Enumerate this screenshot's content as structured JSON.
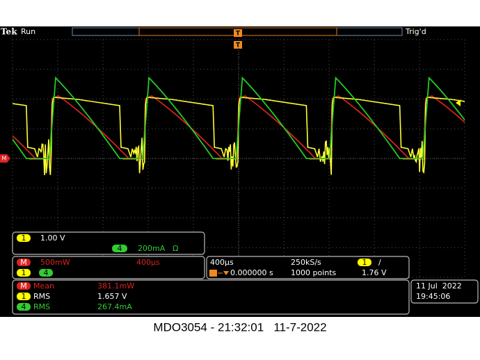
{
  "header": {
    "brand": "Tek",
    "status": "Run",
    "trigger_status": "Trig'd",
    "trigger_marker": "T"
  },
  "markers": {
    "math": "M"
  },
  "channel_panel": {
    "ch1_badge": "1",
    "ch1_scale": "1.00 V",
    "ch4_badge": "4",
    "ch4_scale": "200mA",
    "ch4_unit": "Ω"
  },
  "math_panel": {
    "badge": "M",
    "scale": "500mW",
    "time": "400µs",
    "src1": "1",
    "src2": "4"
  },
  "horizontal_panel": {
    "timebase": "400µs",
    "sample_rate": "250kS/s",
    "trigger_source": "1",
    "trigger_slope": "∕",
    "position": "0.000000 s",
    "record": "1000 points",
    "trigger_level": "1.76 V"
  },
  "measurements": [
    {
      "badge": "M",
      "label": "Mean",
      "value": "381.1mW"
    },
    {
      "badge": "1",
      "label": "RMS",
      "value": "1.657 V"
    },
    {
      "badge": "4",
      "label": "RMS",
      "value": "267.4mA"
    }
  ],
  "datetime": {
    "date": "11 Jul  2022",
    "time": "19:45:06"
  },
  "caption": "MDO3054 - 21:32:01   11-7-2022"
}
